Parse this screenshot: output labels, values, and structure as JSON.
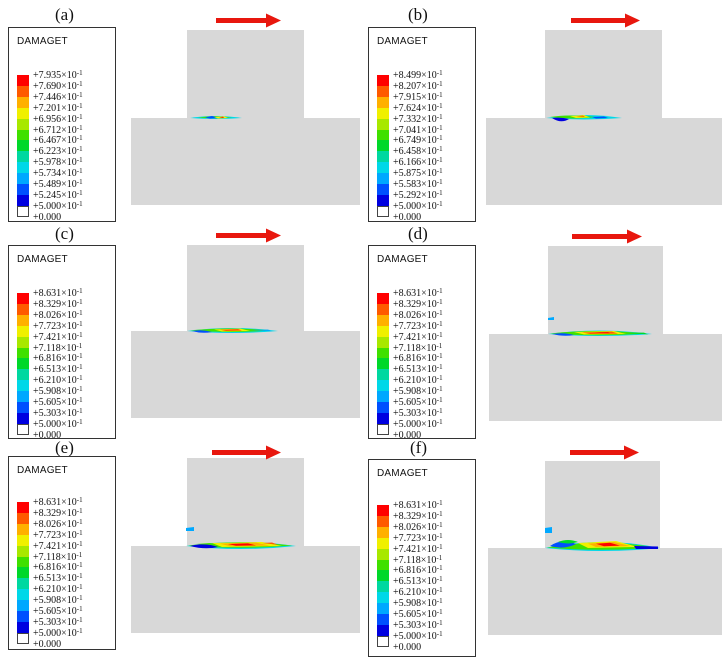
{
  "colors": {
    "scale": [
      "#ff0000",
      "#ff5a00",
      "#ffb000",
      "#f0f000",
      "#a8e800",
      "#40e000",
      "#00d82a",
      "#00d8a0",
      "#00d8e8",
      "#00a8ff",
      "#0050ff",
      "#0000e0",
      "#ffffff"
    ],
    "part": "#d8d8d8",
    "arrow": "#e8170e"
  },
  "panels": [
    {
      "label": "(a)",
      "legend_title": "DAMAGET",
      "values": [
        "+7.935×10",
        "+7.690×10",
        "+7.446×10",
        "+7.201×10",
        "+6.956×10",
        "+6.712×10",
        "+6.467×10",
        "+6.223×10",
        "+5.978×10",
        "+5.734×10",
        "+5.489×10",
        "+5.245×10",
        "+5.000×10",
        "+0.000"
      ]
    },
    {
      "label": "(b)",
      "legend_title": "DAMAGET",
      "values": [
        "+8.499×10",
        "+8.207×10",
        "+7.915×10",
        "+7.624×10",
        "+7.332×10",
        "+7.041×10",
        "+6.749×10",
        "+6.458×10",
        "+6.166×10",
        "+5.875×10",
        "+5.583×10",
        "+5.292×10",
        "+5.000×10",
        "+0.000"
      ]
    },
    {
      "label": "(c)",
      "legend_title": "DAMAGET",
      "values": [
        "+8.631×10",
        "+8.329×10",
        "+8.026×10",
        "+7.723×10",
        "+7.421×10",
        "+7.118×10",
        "+6.816×10",
        "+6.513×10",
        "+6.210×10",
        "+5.908×10",
        "+5.605×10",
        "+5.303×10",
        "+5.000×10",
        "+0.000"
      ]
    },
    {
      "label": "(d)",
      "legend_title": "DAMAGET",
      "values": [
        "+8.631×10",
        "+8.329×10",
        "+8.026×10",
        "+7.723×10",
        "+7.421×10",
        "+7.118×10",
        "+6.816×10",
        "+6.513×10",
        "+6.210×10",
        "+5.908×10",
        "+5.605×10",
        "+5.303×10",
        "+5.000×10",
        "+0.000"
      ]
    },
    {
      "label": "(e)",
      "legend_title": "DAMAGET",
      "values": [
        "+8.631×10",
        "+8.329×10",
        "+8.026×10",
        "+7.723×10",
        "+7.421×10",
        "+7.118×10",
        "+6.816×10",
        "+6.513×10",
        "+6.210×10",
        "+5.908×10",
        "+5.605×10",
        "+5.303×10",
        "+5.000×10",
        "+0.000"
      ]
    },
    {
      "label": "(f)",
      "legend_title": "DAMAGET",
      "values": [
        "+8.631×10",
        "+8.329×10",
        "+8.026×10",
        "+7.723×10",
        "+7.421×10",
        "+7.118×10",
        "+6.816×10",
        "+6.513×10",
        "+6.210×10",
        "+5.908×10",
        "+5.605×10",
        "+5.303×10",
        "+5.000×10",
        "+0.000"
      ]
    }
  ],
  "exponent": "-1"
}
